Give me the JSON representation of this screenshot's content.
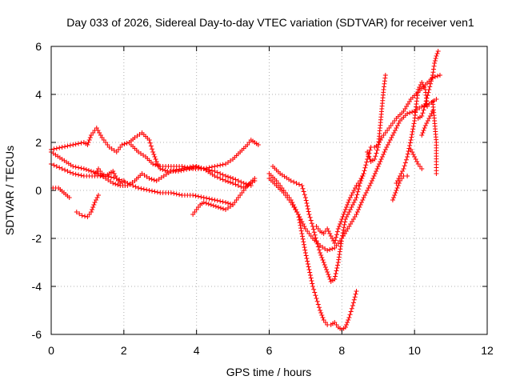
{
  "chart_data": {
    "type": "scatter",
    "title": "Day 033 of 2026, Sidereal Day-to-day VTEC variation (SDTVAR) for receiver ven1",
    "xlabel": "GPS time / hours",
    "ylabel": "SDTVAR / TECUs",
    "xlim": [
      0,
      12
    ],
    "ylim": [
      -6,
      6
    ],
    "xticks": [
      "0",
      "2",
      "4",
      "6",
      "8",
      "10",
      "12"
    ],
    "yticks": [
      "-6",
      "-4",
      "-2",
      "0",
      "2",
      "4",
      "6"
    ],
    "grid": true,
    "legend": "none",
    "marker": "plus",
    "color": "#ff0000",
    "series": [
      {
        "points": [
          [
            0,
            1.7
          ],
          [
            0.3,
            1.8
          ],
          [
            0.6,
            1.9
          ],
          [
            0.9,
            2.0
          ],
          [
            1.0,
            1.9
          ],
          [
            1.1,
            2.3
          ],
          [
            1.25,
            2.6
          ],
          [
            1.4,
            2.2
          ],
          [
            1.6,
            1.8
          ],
          [
            1.8,
            1.6
          ],
          [
            1.95,
            1.9
          ],
          [
            2.15,
            2.0
          ],
          [
            2.3,
            2.2
          ],
          [
            2.5,
            2.4
          ],
          [
            2.7,
            2.1
          ],
          [
            2.8,
            1.6
          ],
          [
            2.9,
            1.2
          ],
          [
            3.0,
            0.9
          ],
          [
            3.2,
            0.8
          ],
          [
            3.5,
            0.8
          ],
          [
            3.8,
            0.9
          ],
          [
            4.0,
            1.0
          ],
          [
            4.2,
            0.9
          ],
          [
            4.5,
            0.8
          ],
          [
            4.8,
            0.6
          ],
          [
            5.0,
            0.5
          ],
          [
            5.3,
            0.3
          ],
          [
            5.5,
            0.2
          ]
        ]
      },
      {
        "points": [
          [
            0,
            1.6
          ],
          [
            0.3,
            1.3
          ],
          [
            0.6,
            1.0
          ],
          [
            0.9,
            0.9
          ],
          [
            1.1,
            0.8
          ],
          [
            1.3,
            0.7
          ],
          [
            1.5,
            0.5
          ],
          [
            1.7,
            0.3
          ],
          [
            1.9,
            0.2
          ],
          [
            2.1,
            0.2
          ],
          [
            2.3,
            0.4
          ],
          [
            2.5,
            0.7
          ],
          [
            2.7,
            0.5
          ],
          [
            2.9,
            0.4
          ],
          [
            3.1,
            0.6
          ],
          [
            3.3,
            0.8
          ],
          [
            3.6,
            0.9
          ],
          [
            3.9,
            1.0
          ],
          [
            4.2,
            0.9
          ],
          [
            4.5,
            0.6
          ],
          [
            4.8,
            0.4
          ],
          [
            5.0,
            0.3
          ],
          [
            5.3,
            0.1
          ],
          [
            5.6,
            0.4
          ]
        ]
      },
      {
        "points": [
          [
            0,
            1.1
          ],
          [
            0.3,
            0.9
          ],
          [
            0.6,
            0.7
          ],
          [
            0.9,
            0.6
          ],
          [
            1.2,
            0.6
          ],
          [
            1.5,
            0.6
          ],
          [
            1.8,
            0.5
          ],
          [
            2.1,
            0.3
          ],
          [
            2.4,
            0.1
          ],
          [
            2.7,
            0.0
          ],
          [
            3.0,
            -0.1
          ],
          [
            3.3,
            -0.1
          ],
          [
            3.6,
            -0.2
          ],
          [
            3.9,
            -0.2
          ],
          [
            4.2,
            -0.3
          ],
          [
            4.5,
            -0.4
          ],
          [
            4.8,
            -0.5
          ],
          [
            5.0,
            -0.6
          ]
        ]
      },
      {
        "points": [
          [
            2.2,
            1.9
          ],
          [
            2.4,
            1.6
          ],
          [
            2.6,
            1.4
          ],
          [
            2.8,
            1.1
          ],
          [
            3.0,
            1.0
          ],
          [
            3.3,
            1.0
          ],
          [
            3.6,
            1.0
          ],
          [
            3.9,
            0.9
          ],
          [
            4.2,
            0.9
          ],
          [
            4.5,
            1.0
          ],
          [
            4.8,
            1.1
          ],
          [
            5.0,
            1.3
          ],
          [
            5.2,
            1.6
          ],
          [
            5.4,
            1.9
          ],
          [
            5.5,
            2.1
          ],
          [
            5.6,
            2.0
          ],
          [
            5.7,
            1.9
          ]
        ]
      },
      {
        "points": [
          [
            1.2,
            0.6
          ],
          [
            1.3,
            0.9
          ],
          [
            1.4,
            0.7
          ],
          [
            1.5,
            0.6
          ],
          [
            1.6,
            0.7
          ],
          [
            1.7,
            0.8
          ],
          [
            1.8,
            0.5
          ],
          [
            1.9,
            0.3
          ],
          [
            2.0,
            0.4
          ]
        ]
      },
      {
        "points": [
          [
            0.05,
            0.1
          ],
          [
            0.2,
            0.1
          ],
          [
            0.35,
            -0.1
          ],
          [
            0.5,
            -0.3
          ]
        ]
      },
      {
        "points": [
          [
            0.7,
            -0.9
          ],
          [
            0.85,
            -1.05
          ],
          [
            1.0,
            -1.1
          ],
          [
            1.1,
            -0.9
          ],
          [
            1.2,
            -0.5
          ],
          [
            1.3,
            -0.2
          ]
        ]
      },
      {
        "points": [
          [
            3.9,
            -1.0
          ],
          [
            4.0,
            -0.8
          ],
          [
            4.1,
            -0.6
          ],
          [
            4.2,
            -0.5
          ],
          [
            4.4,
            -0.6
          ],
          [
            4.6,
            -0.7
          ],
          [
            4.8,
            -0.8
          ],
          [
            5.0,
            -0.6
          ],
          [
            5.2,
            -0.2
          ],
          [
            5.4,
            0.2
          ],
          [
            5.6,
            0.5
          ]
        ]
      },
      {
        "points": [
          [
            6.0,
            0.7
          ],
          [
            6.2,
            0.4
          ],
          [
            6.4,
            0.0
          ],
          [
            6.6,
            -0.4
          ],
          [
            6.8,
            -1.0
          ],
          [
            6.9,
            -1.8
          ],
          [
            7.0,
            -2.6
          ],
          [
            7.1,
            -3.3
          ],
          [
            7.2,
            -4.0
          ],
          [
            7.3,
            -4.5
          ],
          [
            7.4,
            -5.0
          ],
          [
            7.5,
            -5.4
          ],
          [
            7.6,
            -5.6
          ],
          [
            7.7,
            -5.6
          ],
          [
            7.8,
            -5.5
          ],
          [
            7.9,
            -5.7
          ],
          [
            8.0,
            -5.8
          ],
          [
            8.1,
            -5.7
          ],
          [
            8.2,
            -5.3
          ],
          [
            8.3,
            -4.8
          ],
          [
            8.4,
            -4.2
          ]
        ]
      },
      {
        "points": [
          [
            6.0,
            0.5
          ],
          [
            6.2,
            0.2
          ],
          [
            6.4,
            -0.1
          ],
          [
            6.6,
            -0.5
          ],
          [
            6.8,
            -1.0
          ],
          [
            7.0,
            -1.6
          ],
          [
            7.2,
            -2.0
          ],
          [
            7.4,
            -2.3
          ],
          [
            7.6,
            -2.5
          ],
          [
            7.8,
            -2.4
          ],
          [
            8.0,
            -2.0
          ],
          [
            8.2,
            -1.5
          ],
          [
            8.4,
            -1.0
          ],
          [
            8.6,
            -0.3
          ],
          [
            8.8,
            0.3
          ],
          [
            9.0,
            1.0
          ],
          [
            9.2,
            1.7
          ],
          [
            9.4,
            2.3
          ],
          [
            9.6,
            2.9
          ],
          [
            9.8,
            3.2
          ],
          [
            10.0,
            3.3
          ],
          [
            10.2,
            3.5
          ],
          [
            10.4,
            3.6
          ],
          [
            10.6,
            3.8
          ]
        ]
      },
      {
        "points": [
          [
            6.1,
            1.0
          ],
          [
            6.3,
            0.7
          ],
          [
            6.6,
            0.4
          ],
          [
            6.9,
            0.2
          ],
          [
            7.0,
            -0.3
          ],
          [
            7.1,
            -1.0
          ],
          [
            7.2,
            -1.5
          ],
          [
            7.3,
            -2.1
          ],
          [
            7.4,
            -2.6
          ],
          [
            7.5,
            -3.0
          ],
          [
            7.6,
            -3.4
          ],
          [
            7.7,
            -3.8
          ],
          [
            7.8,
            -3.7
          ],
          [
            7.9,
            -3.0
          ],
          [
            8.0,
            -2.0
          ],
          [
            8.1,
            -1.2
          ],
          [
            8.3,
            -0.6
          ],
          [
            8.4,
            -0.3
          ],
          [
            8.5,
            0.3
          ],
          [
            8.6,
            0.7
          ],
          [
            8.7,
            1.3
          ],
          [
            8.8,
            1.8
          ],
          [
            8.9,
            1.8
          ],
          [
            9.0,
            1.9
          ],
          [
            9.1,
            2.2
          ],
          [
            9.3,
            2.6
          ],
          [
            9.5,
            3.0
          ],
          [
            9.7,
            3.3
          ],
          [
            9.9,
            3.8
          ],
          [
            10.1,
            4.1
          ],
          [
            10.3,
            4.4
          ],
          [
            10.5,
            4.7
          ],
          [
            10.7,
            4.8
          ]
        ]
      },
      {
        "points": [
          [
            7.3,
            -1.5
          ],
          [
            7.4,
            -1.7
          ],
          [
            7.5,
            -1.8
          ],
          [
            7.6,
            -1.6
          ],
          [
            7.7,
            -1.9
          ],
          [
            7.8,
            -2.2
          ],
          [
            7.9,
            -1.6
          ],
          [
            8.0,
            -1.2
          ],
          [
            8.1,
            -0.8
          ],
          [
            8.2,
            -0.4
          ],
          [
            8.3,
            -0.1
          ],
          [
            8.4,
            0.2
          ],
          [
            8.5,
            0.4
          ],
          [
            8.6,
            0.7
          ]
        ]
      },
      {
        "points": [
          [
            8.7,
            1.6
          ],
          [
            8.8,
            1.2
          ],
          [
            8.9,
            1.3
          ],
          [
            9.0,
            1.8
          ],
          [
            9.05,
            2.6
          ],
          [
            9.1,
            3.4
          ],
          [
            9.15,
            4.2
          ],
          [
            9.2,
            4.8
          ]
        ]
      },
      {
        "points": [
          [
            9.5,
            0.3
          ],
          [
            9.6,
            0.6
          ],
          [
            9.7,
            0.9
          ],
          [
            9.8,
            1.4
          ],
          [
            9.9,
            2.1
          ],
          [
            10.0,
            2.9
          ],
          [
            10.05,
            3.6
          ],
          [
            10.1,
            4.2
          ],
          [
            10.2,
            4.5
          ],
          [
            10.3,
            4.2
          ],
          [
            10.35,
            3.5
          ]
        ]
      },
      {
        "points": [
          [
            9.4,
            -0.4
          ],
          [
            9.5,
            0.0
          ],
          [
            9.6,
            0.4
          ],
          [
            9.7,
            0.6
          ],
          [
            9.8,
            0.6
          ]
        ]
      },
      {
        "points": [
          [
            9.9,
            1.7
          ],
          [
            10.0,
            1.4
          ],
          [
            10.1,
            1.1
          ],
          [
            10.2,
            0.9
          ]
        ]
      },
      {
        "points": [
          [
            10.1,
            3.0
          ],
          [
            10.2,
            3.1
          ],
          [
            10.3,
            3.6
          ],
          [
            10.4,
            4.2
          ],
          [
            10.5,
            4.8
          ],
          [
            10.55,
            5.3
          ],
          [
            10.6,
            5.6
          ],
          [
            10.65,
            5.8
          ]
        ]
      },
      {
        "points": [
          [
            10.5,
            3.7
          ],
          [
            10.55,
            2.9
          ],
          [
            10.6,
            2.0
          ],
          [
            10.6,
            1.2
          ],
          [
            10.6,
            0.7
          ]
        ]
      },
      {
        "points": [
          [
            10.2,
            2.3
          ],
          [
            10.3,
            2.7
          ],
          [
            10.4,
            3.0
          ],
          [
            10.5,
            3.3
          ]
        ]
      }
    ]
  }
}
